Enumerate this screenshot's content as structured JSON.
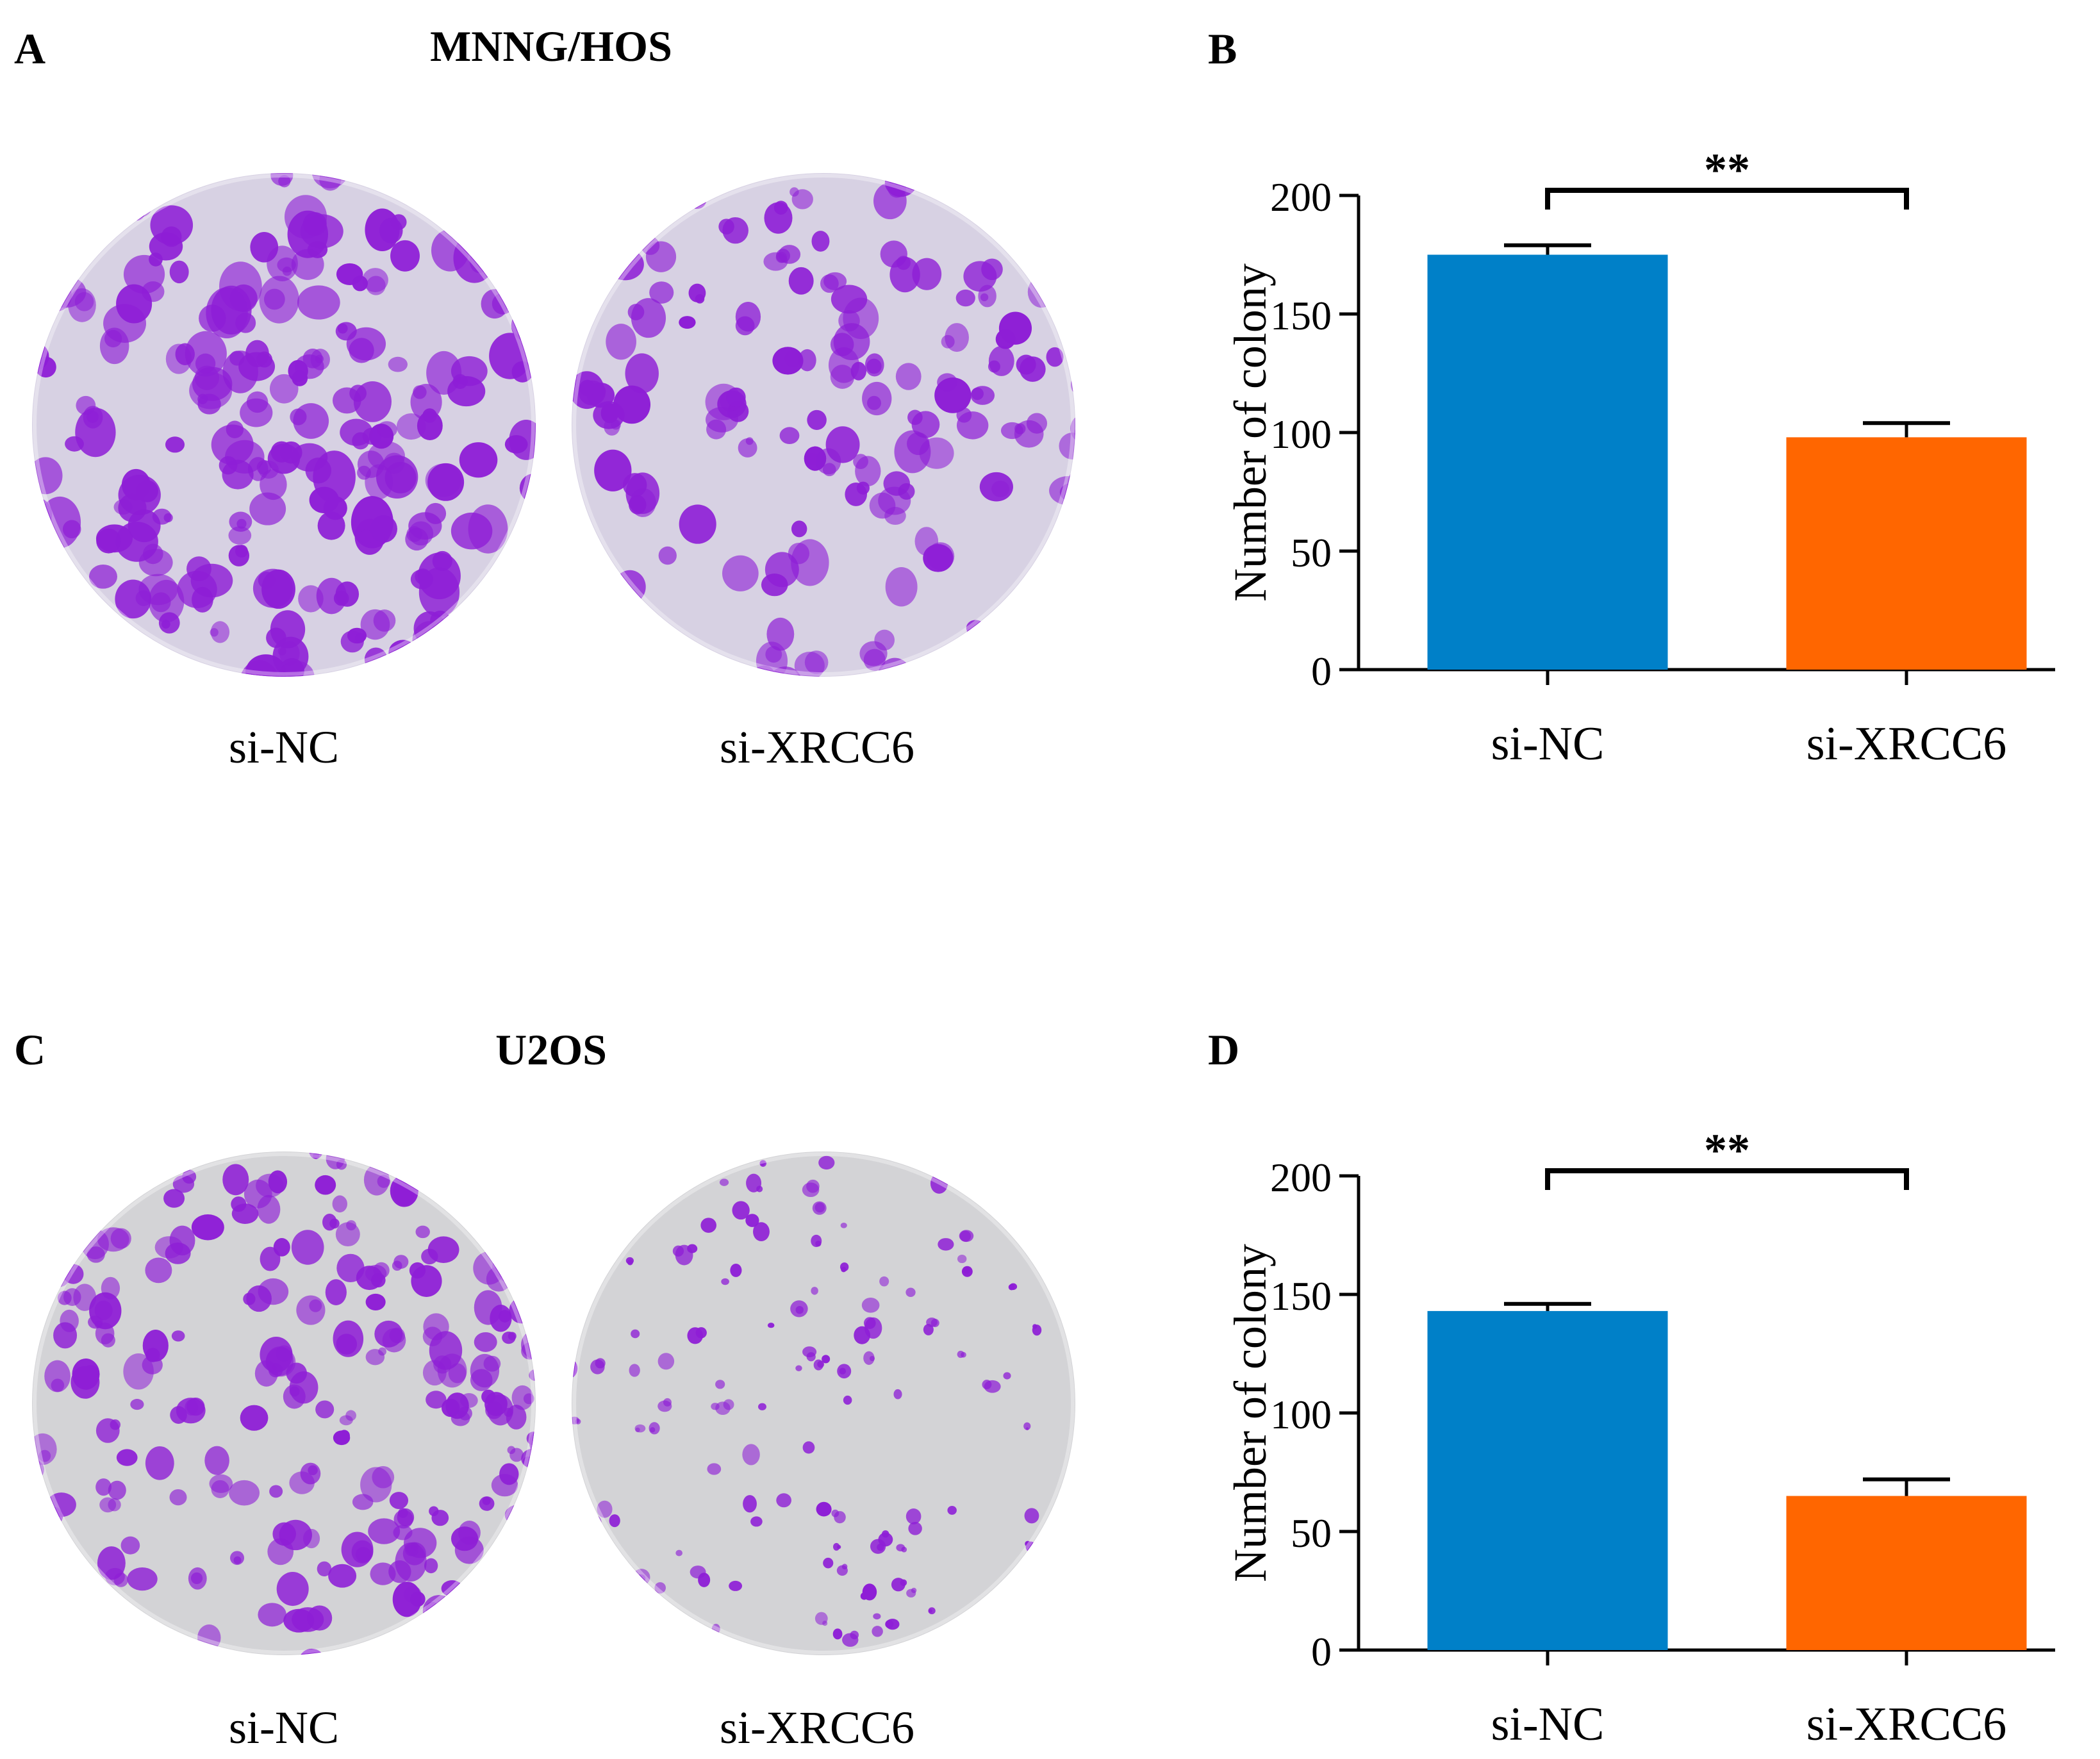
{
  "panels": {
    "A": {
      "letter": "A",
      "title": "MNNG/HOS",
      "dish_labels": [
        "si-NC",
        "si-XRCC6"
      ]
    },
    "B": {
      "letter": "B"
    },
    "C": {
      "letter": "C",
      "title": "U2OS",
      "dish_labels": [
        "si-NC",
        "si-XRCC6"
      ]
    },
    "D": {
      "letter": "D"
    }
  },
  "colors": {
    "si_nc": "#0080c8",
    "si_xrcc6": "#ff6600",
    "dish_bg_hos": "#d7d1e3",
    "dish_bg_u2os": "#d3d3d6",
    "colony": "#8e1ed6"
  },
  "chart_data": [
    {
      "panel": "B",
      "type": "bar",
      "categories": [
        "si-NC",
        "si-XRCC6"
      ],
      "values": [
        175,
        98
      ],
      "errors": [
        4,
        6
      ],
      "ylabel": "Number of colony",
      "xlabel": "",
      "ylim": [
        0,
        200
      ],
      "yticks": [
        0,
        50,
        100,
        150,
        200
      ],
      "significance": "**"
    },
    {
      "panel": "D",
      "type": "bar",
      "categories": [
        "si-NC",
        "si-XRCC6"
      ],
      "values": [
        143,
        65
      ],
      "errors": [
        3,
        7
      ],
      "ylabel": "Number of colony",
      "xlabel": "",
      "ylim": [
        0,
        200
      ],
      "yticks": [
        0,
        50,
        100,
        150,
        200
      ],
      "significance": "**"
    }
  ]
}
